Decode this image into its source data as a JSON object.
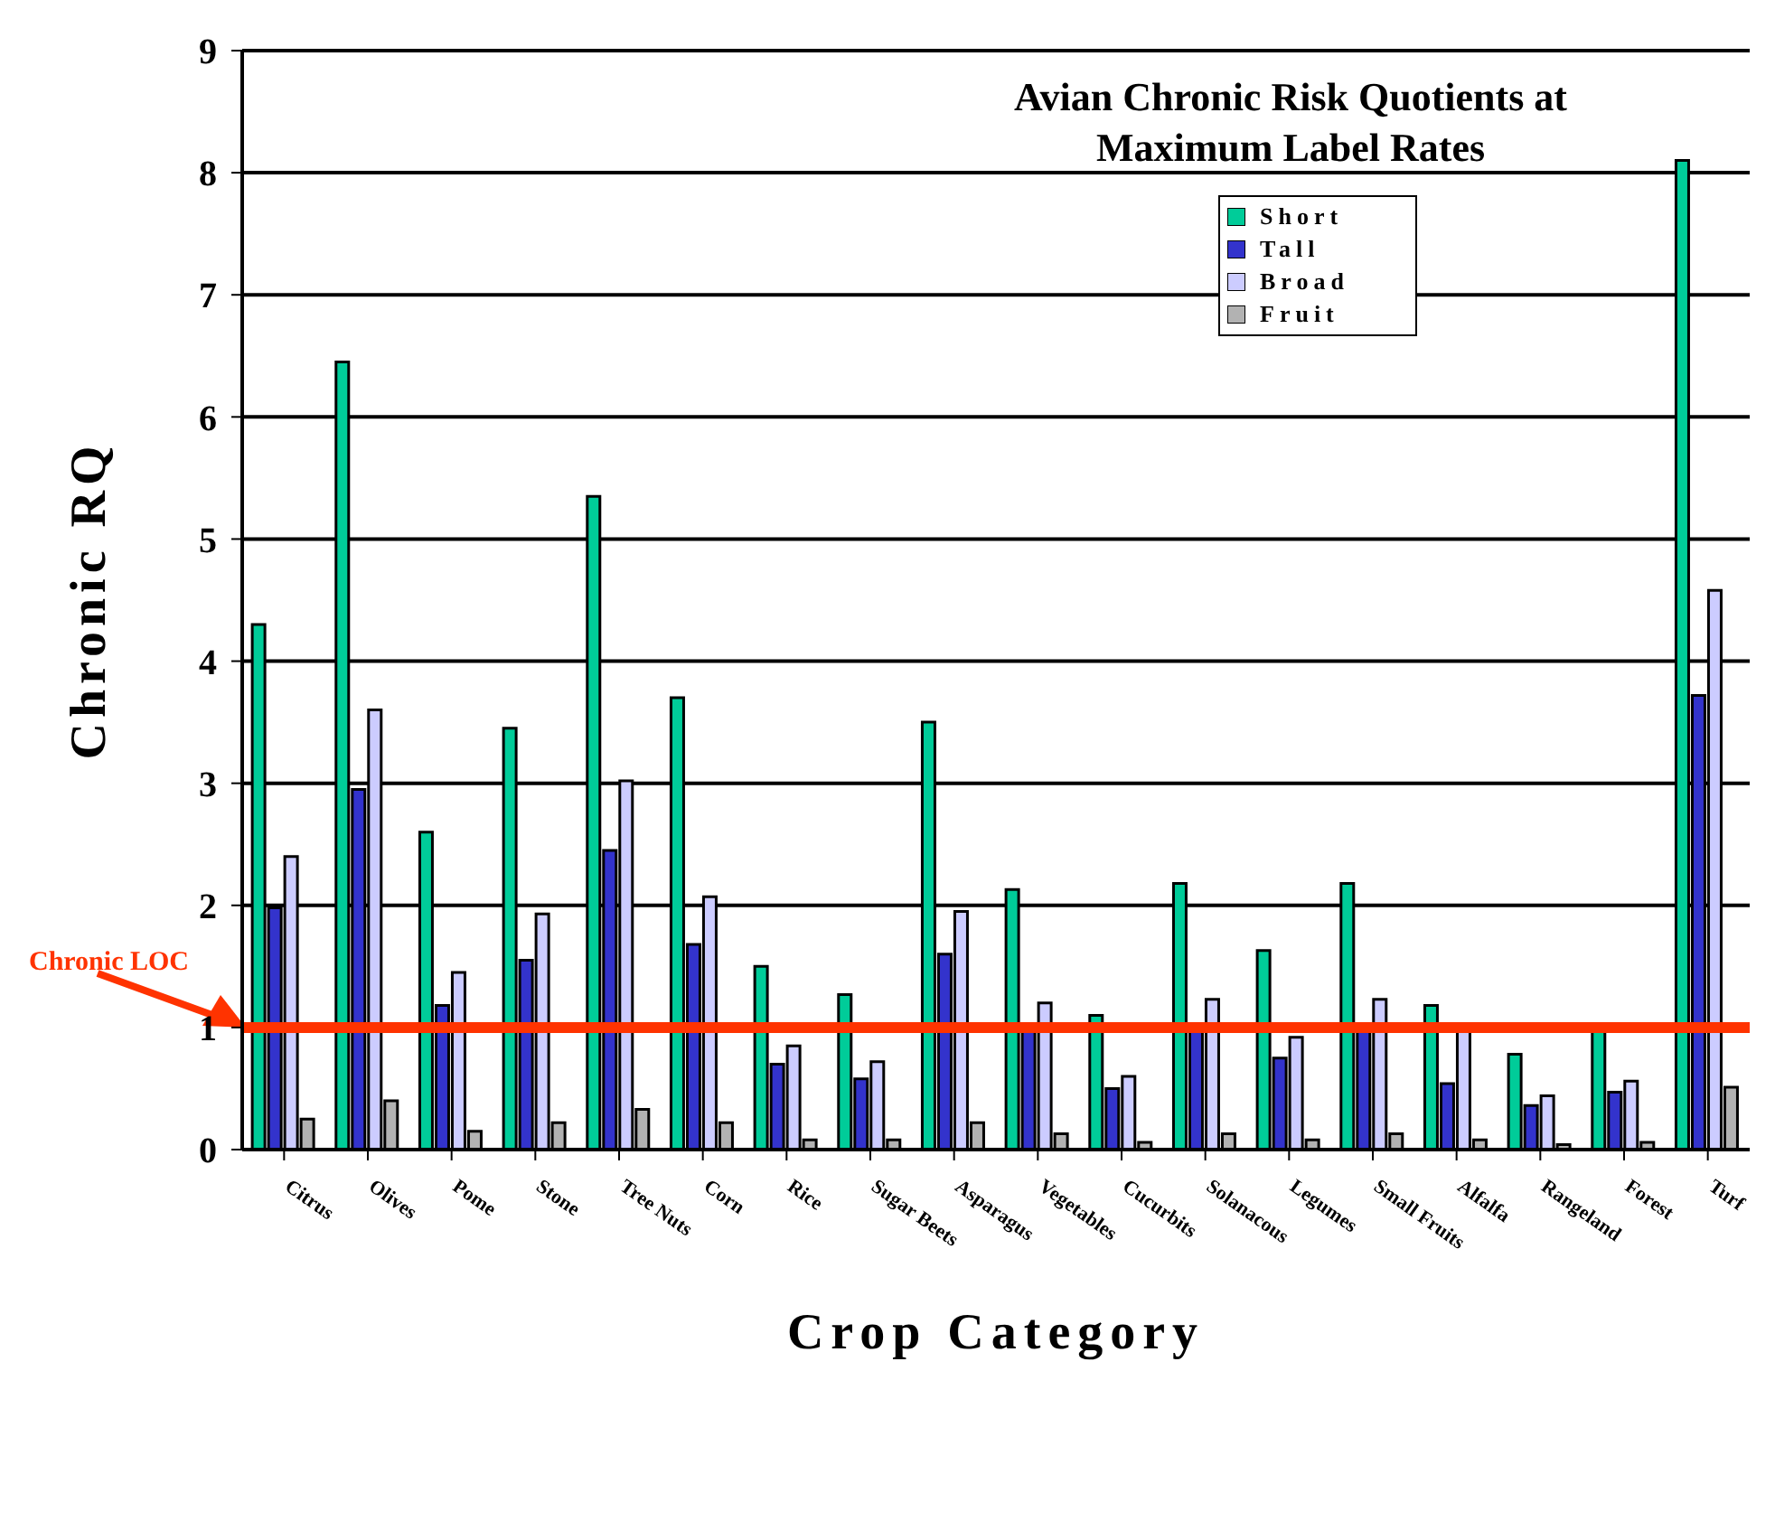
{
  "chart_data": {
    "type": "bar",
    "title": "Avian Chronic Risk Quotients at\nMaximum Label Rates",
    "xlabel": "Crop Category",
    "ylabel": "Chronic RQ",
    "categories": [
      "Citrus",
      "Olives",
      "Pome",
      "Stone",
      "Tree Nuts",
      "Corn",
      "Rice",
      "Sugar Beets",
      "Asparagus",
      "Vegetables",
      "Cucurbits",
      "Solanacous",
      "Legumes",
      "Small Fruits",
      "Alfalfa",
      "Rangeland",
      "Forest",
      "Turf"
    ],
    "series": [
      {
        "name": "Short",
        "color": "#00cc99",
        "values": [
          4.3,
          6.45,
          2.6,
          3.45,
          5.35,
          3.7,
          1.5,
          1.27,
          3.5,
          2.13,
          1.1,
          2.18,
          1.63,
          2.18,
          1.18,
          0.78,
          1.0,
          8.1
        ]
      },
      {
        "name": "Tall",
        "color": "#3333cc",
        "values": [
          1.98,
          2.95,
          1.18,
          1.55,
          2.45,
          1.68,
          0.7,
          0.58,
          1.6,
          1.0,
          0.5,
          1.0,
          0.75,
          1.0,
          0.54,
          0.36,
          0.47,
          3.72
        ]
      },
      {
        "name": "Broad",
        "color": "#ccccff",
        "values": [
          2.4,
          3.6,
          1.45,
          1.93,
          3.02,
          2.07,
          0.85,
          0.72,
          1.95,
          1.2,
          0.6,
          1.23,
          0.92,
          1.23,
          0.97,
          0.44,
          0.56,
          4.58
        ]
      },
      {
        "name": "Fruit",
        "color": "#b2b2b2",
        "values": [
          0.25,
          0.4,
          0.15,
          0.22,
          0.33,
          0.22,
          0.08,
          0.08,
          0.22,
          0.13,
          0.06,
          0.13,
          0.08,
          0.13,
          0.08,
          0.04,
          0.06,
          0.51
        ]
      }
    ],
    "ylim": [
      0,
      9
    ],
    "yticks": [
      0,
      1,
      2,
      3,
      4,
      5,
      6,
      7,
      8,
      9
    ],
    "grid": "y",
    "legend": "top right",
    "ref_lines": [
      {
        "axis": "y",
        "value": 1,
        "label": "Chronic LOC",
        "color": "#ff3300"
      }
    ]
  }
}
